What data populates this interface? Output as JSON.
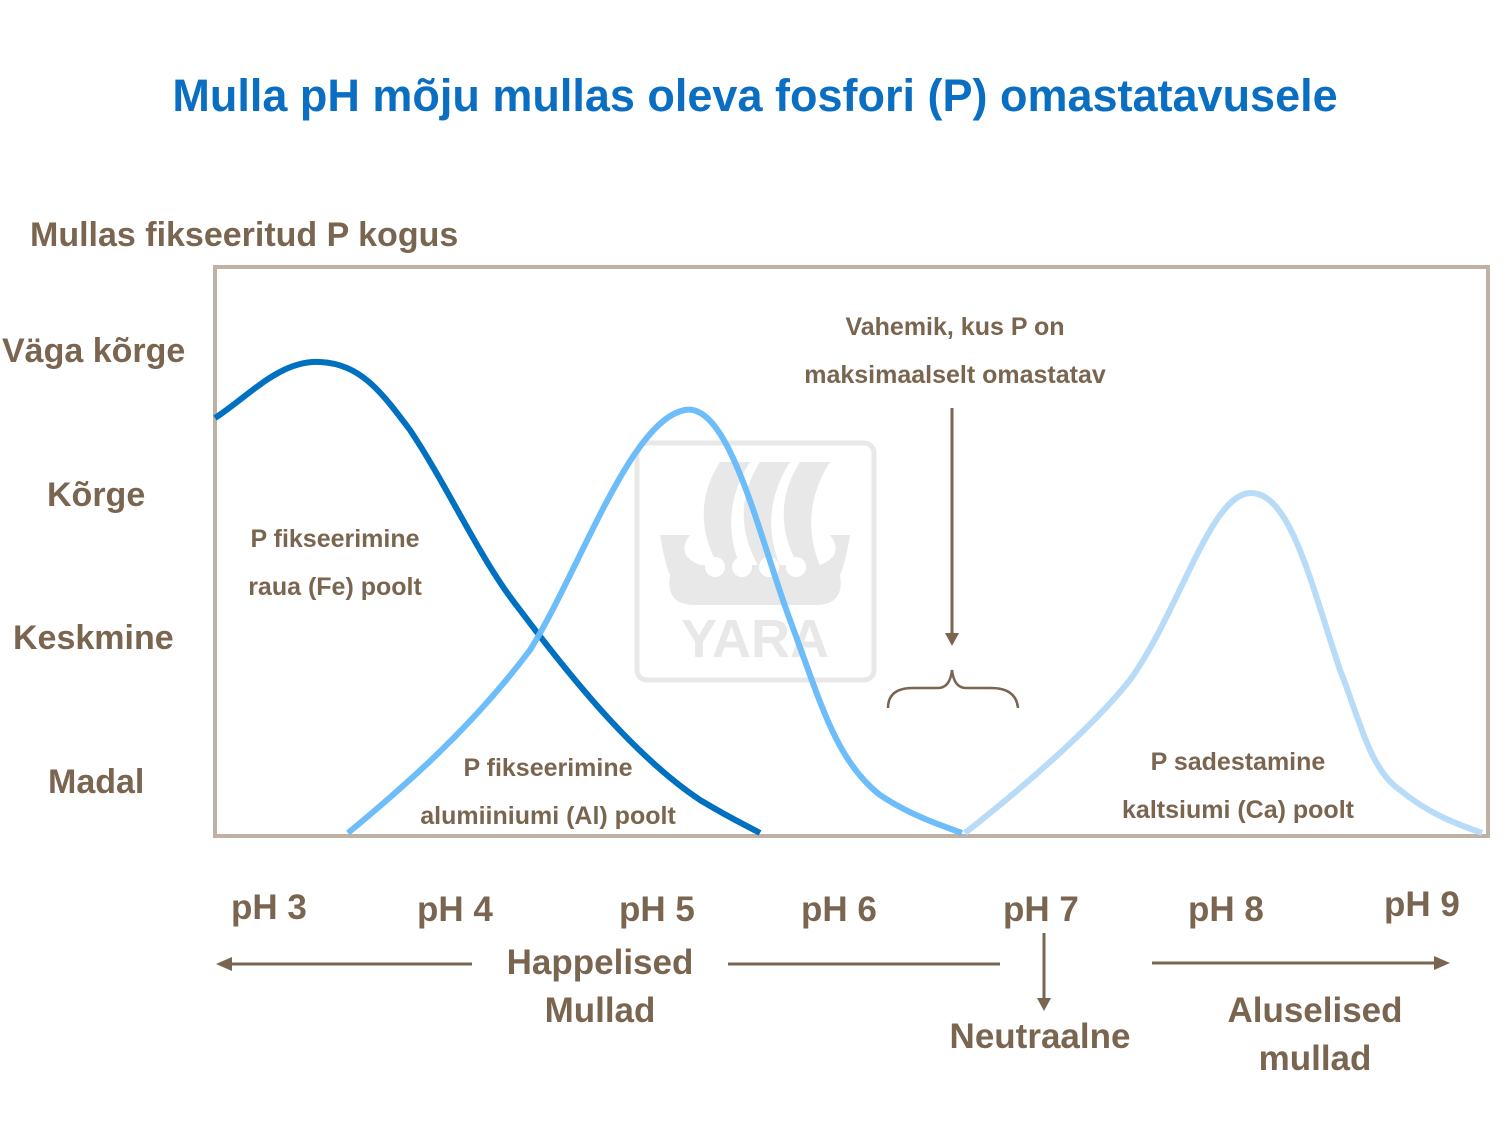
{
  "title": "Mulla pH mõju mullas oleva fosfori (P) omastatavusele",
  "y_axis_title": "Mullas fikseeritud P kogus",
  "y_levels": [
    "Väga kõrge",
    "Kõrge",
    "Keskmine",
    "Madal"
  ],
  "x_ticks": [
    "pH 3",
    "pH 4",
    "pH 5",
    "pH 6",
    "pH 7",
    "pH 8",
    "pH 9"
  ],
  "annotations": {
    "fe": [
      "P fikseerimine",
      "raua (Fe) poolt"
    ],
    "al": [
      "P fikseerimine",
      "alumiiniumi (Al) poolt"
    ],
    "ca": [
      "P sadestamine",
      "kaltsiumi (Ca) poolt"
    ],
    "optimum": [
      "Vahemik, kus P on",
      "maksimaalselt omastatav"
    ]
  },
  "bottom": {
    "acidic": [
      "Happelised",
      "Mullad"
    ],
    "neutral": "Neutraalne",
    "alkaline": [
      "Aluselised",
      "mullad"
    ]
  },
  "watermark": "YARA",
  "colors": {
    "title": "#0a6fc2",
    "fe_curve": "#0070c0",
    "al_curve": "#64b9fa",
    "ca_curve": "#b8dcf7",
    "text": "#7a6650",
    "frame": "#bfb2a5"
  }
}
